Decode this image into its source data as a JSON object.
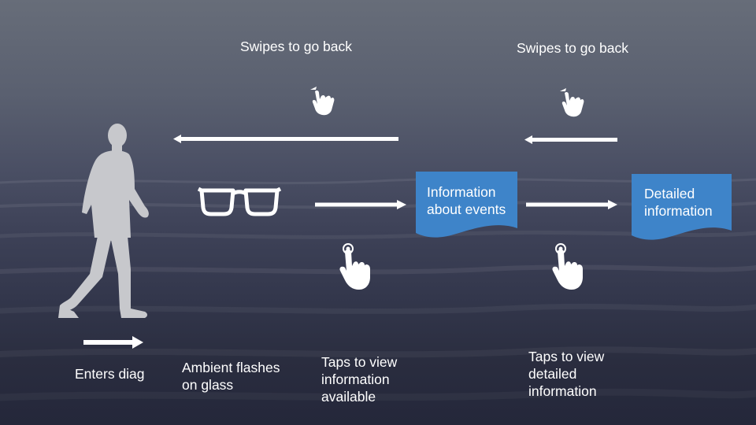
{
  "background": {
    "colors": [
      "#676d79",
      "#3d4157",
      "#24273a"
    ]
  },
  "swipe_labels": {
    "left": "Swipes to go back",
    "right": "Swipes to go back"
  },
  "stages": {
    "enter": "Enters diag",
    "ambient": [
      "Ambient flashes",
      "on glass"
    ],
    "tap_info": [
      "Taps to view",
      "information",
      "available"
    ],
    "tap_detail": [
      "Taps to view",
      "detailed",
      "information"
    ]
  },
  "documents": {
    "events": [
      "Information",
      "about events"
    ],
    "detailed": [
      "Detailed",
      "information"
    ],
    "fill_color": "#3e84c9"
  },
  "icons": [
    "walking-person-icon",
    "glasses-icon",
    "swipe-hand-icon",
    "tap-hand-icon",
    "arrow-right-icon",
    "arrow-left-icon"
  ]
}
